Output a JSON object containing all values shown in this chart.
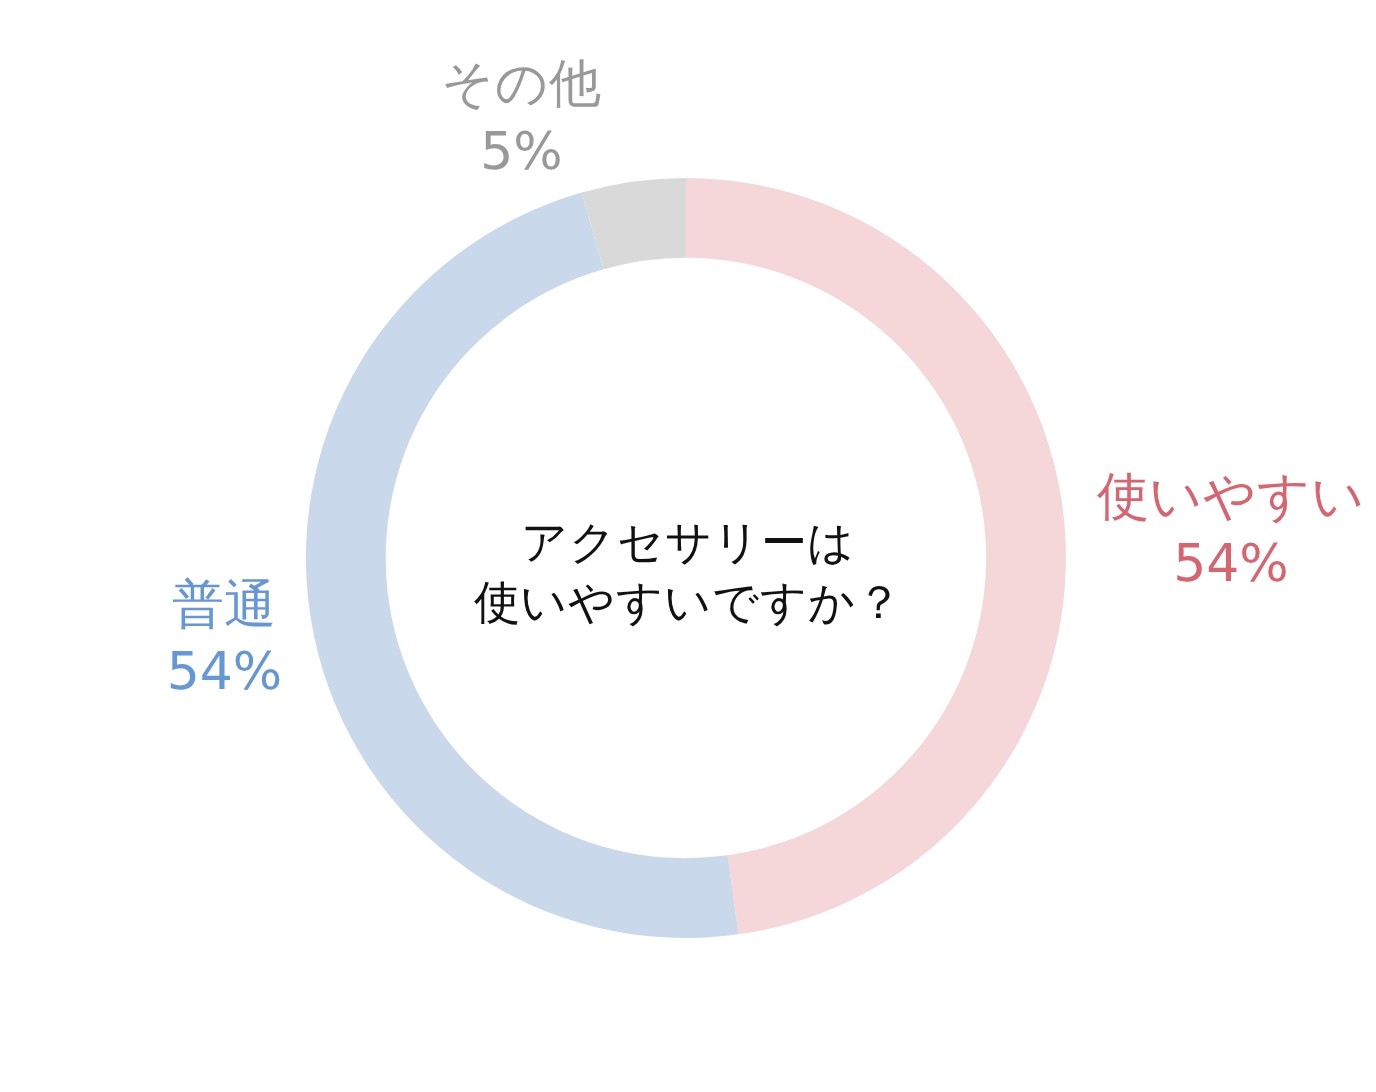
{
  "chart_data": {
    "type": "donut",
    "title": "アクセサリーは",
    "subtitle": "使いやすいですか？",
    "categories": [
      "使いやすい",
      "普通",
      "その他"
    ],
    "values": [
      54,
      54,
      5
    ],
    "value_labels": [
      "54%",
      "54%",
      "5%"
    ],
    "colors": [
      "#f5d6d9",
      "#c9d8eb",
      "#d9d9d9"
    ],
    "legend": false
  }
}
